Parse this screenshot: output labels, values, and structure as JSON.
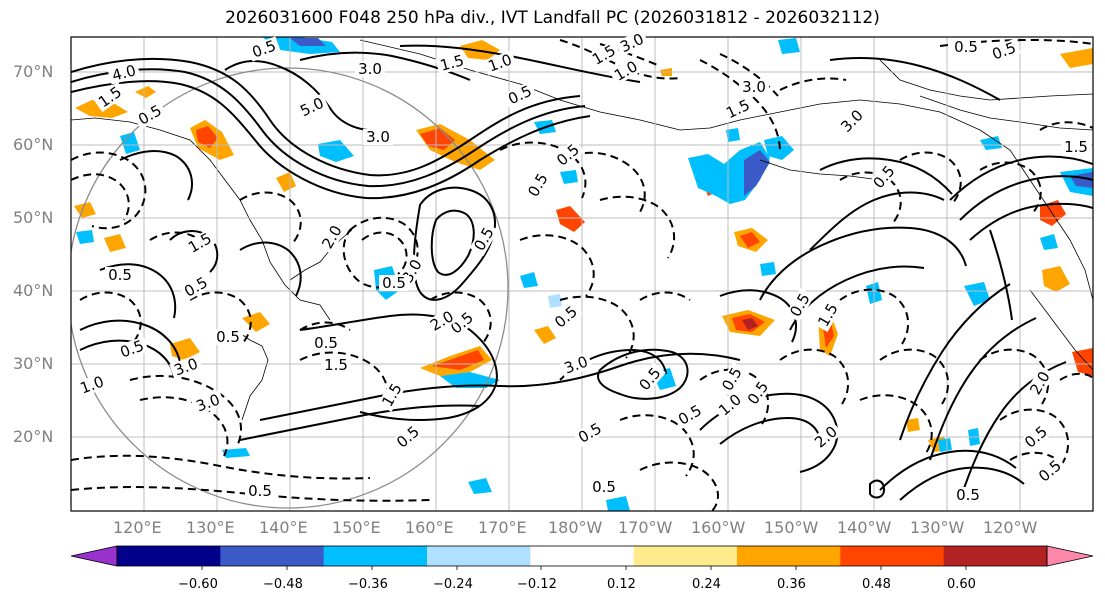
{
  "title": "2026031600 F048 250 hPa div., IVT Landfall PC (2026031812 - 2026032112)",
  "latitude_labels": [
    "70°N",
    "60°N",
    "50°N",
    "40°N",
    "30°N",
    "20°N"
  ],
  "longitude_labels": [
    "120°E",
    "130°E",
    "140°E",
    "150°E",
    "160°E",
    "170°E",
    "180°W",
    "170°W",
    "160°W",
    "150°W",
    "140°W",
    "130°W",
    "120°W"
  ],
  "colorbar": {
    "tick_labels": [
      "−0.60",
      "−0.48",
      "−0.36",
      "−0.24",
      "−0.12",
      "0.12",
      "0.24",
      "0.36",
      "0.48",
      "0.60"
    ],
    "colors": [
      "#9932cc",
      "#00008b",
      "#3a5ac8",
      "#00bfff",
      "#b0e0ff",
      "#ffffff",
      "#ffeb8c",
      "#ffa500",
      "#ff4500",
      "#b22222",
      "#ff88aa"
    ],
    "under_color": "#9932cc",
    "over_color": "#ff88aa"
  },
  "contour_labels": [
    "0.5",
    "4.0",
    "3.0",
    "1.5",
    "5.0",
    "3.0",
    "1.5",
    "1.0",
    "0.5",
    "3.0",
    "1.5",
    "1.0",
    "0.5",
    "3.0",
    "1.5",
    "0.5",
    "0.5",
    "2.0",
    "0.5",
    "1.5",
    "3.0",
    "0.5",
    "0.5",
    "0.5",
    "0.5",
    "0.5",
    "3.0",
    "0.5",
    "0.5",
    "1.0",
    "0.5",
    "1.5",
    "2.0",
    "0.5",
    "1.0",
    "3.0",
    "3.0",
    "1.5",
    "0.5",
    "0.5",
    "0.5",
    "0.5",
    "0.5",
    "1.5",
    "3.0",
    "0.5",
    "0.5",
    "0.5",
    "2.0",
    "2.0",
    "0.5",
    "0.5",
    "0.5",
    "0.5",
    "0.5",
    "1.5",
    "0.5"
  ]
}
